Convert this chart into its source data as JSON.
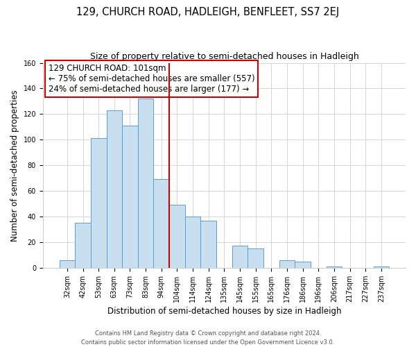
{
  "title": "129, CHURCH ROAD, HADLEIGH, BENFLEET, SS7 2EJ",
  "subtitle": "Size of property relative to semi-detached houses in Hadleigh",
  "xlabel": "Distribution of semi-detached houses by size in Hadleigh",
  "ylabel": "Number of semi-detached properties",
  "bar_labels": [
    "32sqm",
    "42sqm",
    "53sqm",
    "63sqm",
    "73sqm",
    "83sqm",
    "94sqm",
    "104sqm",
    "114sqm",
    "124sqm",
    "135sqm",
    "145sqm",
    "155sqm",
    "165sqm",
    "176sqm",
    "186sqm",
    "196sqm",
    "206sqm",
    "217sqm",
    "227sqm",
    "237sqm"
  ],
  "bar_values": [
    6,
    35,
    101,
    123,
    111,
    132,
    69,
    49,
    40,
    37,
    0,
    17,
    15,
    0,
    6,
    5,
    0,
    1,
    0,
    0,
    1
  ],
  "bar_color": "#c8dff0",
  "bar_edge_color": "#5b9bd5",
  "vline_x_index": 7,
  "vline_color": "#cc0000",
  "annotation_title": "129 CHURCH ROAD: 101sqm",
  "annotation_line1": "← 75% of semi-detached houses are smaller (557)",
  "annotation_line2": "24% of semi-detached houses are larger (177) →",
  "annotation_box_color": "#ffffff",
  "annotation_box_edge_color": "#cc0000",
  "ylim": [
    0,
    160
  ],
  "yticks": [
    0,
    20,
    40,
    60,
    80,
    100,
    120,
    140,
    160
  ],
  "footer_line1": "Contains HM Land Registry data © Crown copyright and database right 2024.",
  "footer_line2": "Contains public sector information licensed under the Open Government Licence v3.0.",
  "title_fontsize": 10.5,
  "subtitle_fontsize": 9,
  "axis_label_fontsize": 8.5,
  "tick_fontsize": 7,
  "footer_fontsize": 6,
  "annotation_fontsize": 8.5
}
